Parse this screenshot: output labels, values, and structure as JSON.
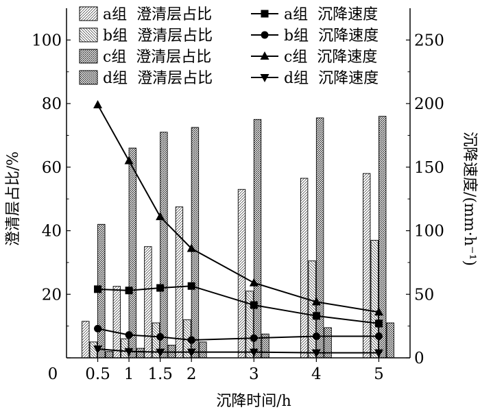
{
  "chart_data": {
    "type": "bar",
    "xlabel": "沉降时间/h",
    "ylabel_left": "澄清层占比/%",
    "ylabel_right": "沉降速度/(mm·h⁻¹)",
    "x": [
      0.5,
      1,
      1.5,
      2,
      3,
      4,
      5
    ],
    "x_ticks": [
      "0",
      "0.5",
      "1",
      "1.5",
      "2",
      "3",
      "4",
      "5"
    ],
    "xlim": [
      0,
      5.5
    ],
    "ylim_left": [
      0,
      110
    ],
    "ylim_right": [
      0,
      275
    ],
    "yticks_left": [
      "0",
      "20",
      "40",
      "60",
      "80",
      "100"
    ],
    "yticks_right": [
      "0",
      "50",
      "100",
      "150",
      "200",
      "250"
    ],
    "bar_series": [
      {
        "name": "a组  澄清层占比",
        "values": [
          11.5,
          22.5,
          35,
          47.5,
          53,
          56.5,
          58
        ]
      },
      {
        "name": "b组  澄清层占比",
        "values": [
          5,
          6,
          11,
          12,
          21,
          30.5,
          37
        ]
      },
      {
        "name": "c组  澄清层占比",
        "values": [
          42,
          66,
          71,
          72.5,
          75,
          75.5,
          76
        ]
      },
      {
        "name": "d组  澄清层占比",
        "values": [
          2,
          3,
          4,
          5,
          7.5,
          9.5,
          11
        ]
      }
    ],
    "line_series": [
      {
        "name": "a组  沉降速度",
        "marker": "square",
        "values": [
          54,
          53,
          55,
          56.5,
          41.5,
          33,
          27
        ]
      },
      {
        "name": "b组  沉降速度",
        "marker": "circle",
        "values": [
          23,
          18,
          16.5,
          14,
          15.5,
          17,
          17
        ]
      },
      {
        "name": "c组  沉降速度",
        "marker": "triangle-up",
        "values": [
          199,
          155,
          111,
          86,
          59,
          44,
          36
        ]
      },
      {
        "name": "d组  沉降速度",
        "marker": "triangle-down",
        "values": [
          7,
          5,
          4.5,
          4.5,
          4.5,
          4,
          4
        ]
      }
    ],
    "legend_position": "top"
  }
}
